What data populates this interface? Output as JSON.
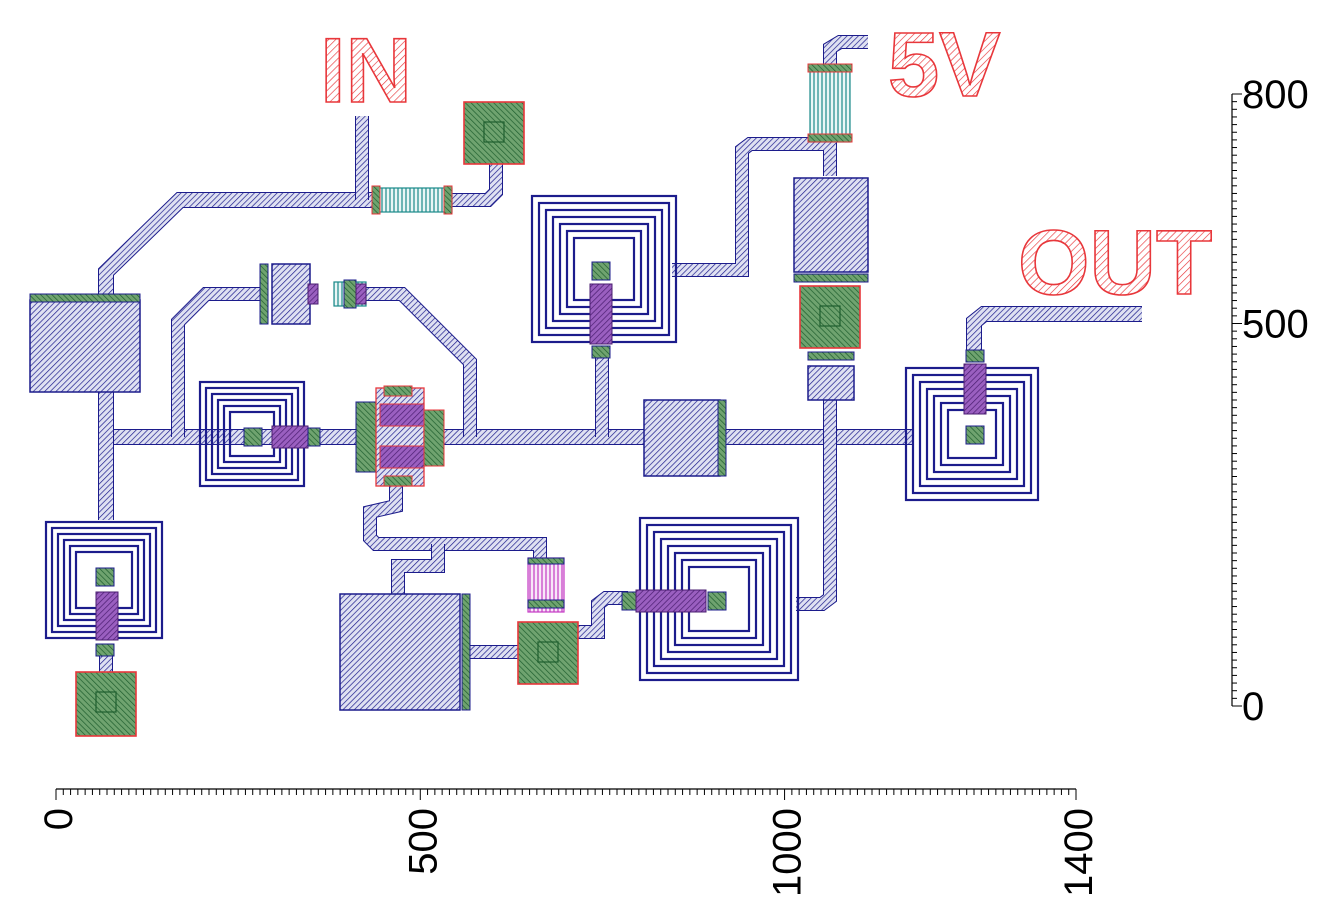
{
  "labels": {
    "input": "IN",
    "supply": "5V",
    "output": "OUT"
  },
  "axes": {
    "x": {
      "min": 0,
      "max": 1400,
      "ticks": [
        {
          "value": 0,
          "label": "0"
        },
        {
          "value": 500,
          "label": "500"
        },
        {
          "value": 1000,
          "label": "1000"
        },
        {
          "value": 1400,
          "label": "1400"
        }
      ]
    },
    "y": {
      "min": 0,
      "max": 800,
      "ticks": [
        {
          "value": 800,
          "label": "800"
        },
        {
          "value": 500,
          "label": "500"
        },
        {
          "value": 0,
          "label": "0"
        }
      ]
    }
  },
  "colors": {
    "metal_line": "#1c1c8c",
    "metal_fill": "#c9cde6",
    "via_green": "#2f9a4b",
    "pad_green": "#6fa36f",
    "label_red": "#e8373b",
    "resistor": "#1a8a8a",
    "overlap_purple": "#7b3aa0",
    "capacitor_pink": "#c43ac4"
  }
}
